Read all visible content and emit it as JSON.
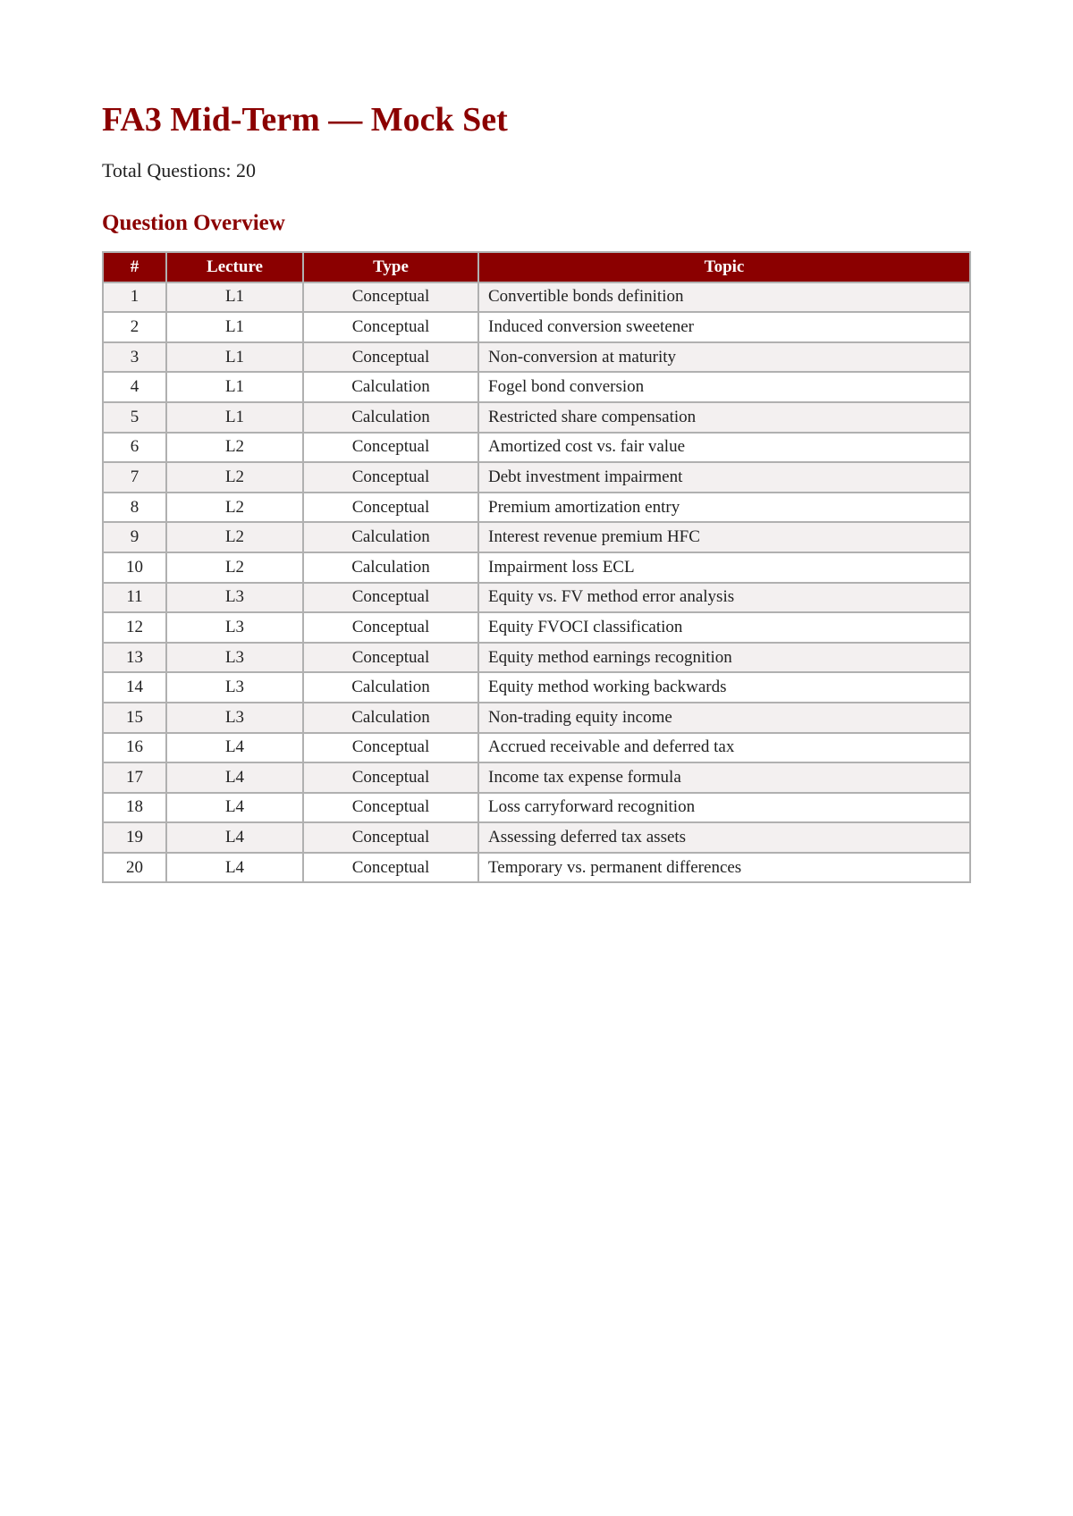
{
  "title": "FA3 Mid-Term — Mock Set",
  "total_questions": "Total Questions: 20",
  "section_heading": "Question Overview",
  "table": {
    "headers": [
      "#",
      "Lecture",
      "Type",
      "Topic"
    ],
    "rows": [
      [
        "1",
        "L1",
        "Conceptual",
        "Convertible bonds definition"
      ],
      [
        "2",
        "L1",
        "Conceptual",
        "Induced conversion sweetener"
      ],
      [
        "3",
        "L1",
        "Conceptual",
        "Non-conversion at maturity"
      ],
      [
        "4",
        "L1",
        "Calculation",
        "Fogel bond conversion"
      ],
      [
        "5",
        "L1",
        "Calculation",
        "Restricted share compensation"
      ],
      [
        "6",
        "L2",
        "Conceptual",
        "Amortized cost vs. fair value"
      ],
      [
        "7",
        "L2",
        "Conceptual",
        "Debt investment impairment"
      ],
      [
        "8",
        "L2",
        "Conceptual",
        "Premium amortization entry"
      ],
      [
        "9",
        "L2",
        "Calculation",
        "Interest revenue premium HFC"
      ],
      [
        "10",
        "L2",
        "Calculation",
        "Impairment loss ECL"
      ],
      [
        "11",
        "L3",
        "Conceptual",
        "Equity vs. FV method error analysis"
      ],
      [
        "12",
        "L3",
        "Conceptual",
        "Equity FVOCI classification"
      ],
      [
        "13",
        "L3",
        "Conceptual",
        "Equity method earnings recognition"
      ],
      [
        "14",
        "L3",
        "Calculation",
        "Equity method working backwards"
      ],
      [
        "15",
        "L3",
        "Calculation",
        "Non-trading equity income"
      ],
      [
        "16",
        "L4",
        "Conceptual",
        "Accrued receivable and deferred tax"
      ],
      [
        "17",
        "L4",
        "Conceptual",
        "Income tax expense formula"
      ],
      [
        "18",
        "L4",
        "Conceptual",
        "Loss carryforward recognition"
      ],
      [
        "19",
        "L4",
        "Conceptual",
        "Assessing deferred tax assets"
      ],
      [
        "20",
        "L4",
        "Conceptual",
        "Temporary vs. permanent differences"
      ]
    ]
  },
  "colors": {
    "accent": "#8b0000",
    "row_alt": "#f3f0f0",
    "border": "#b0b0b0"
  }
}
